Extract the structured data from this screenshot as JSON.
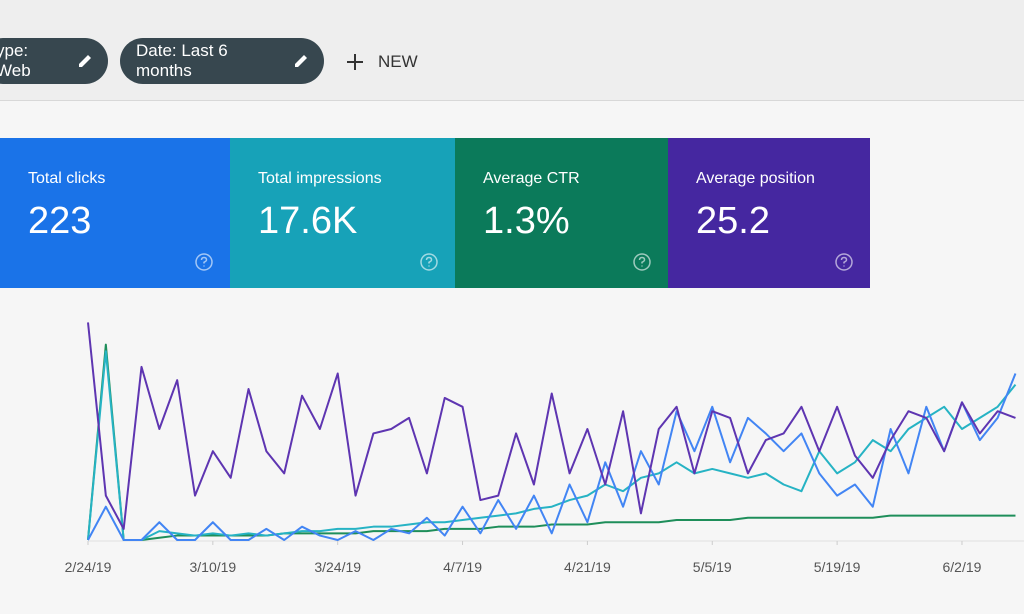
{
  "filters": [
    {
      "label": "ype: Web"
    },
    {
      "label": "Date: Last 6 months"
    }
  ],
  "new_button": "NEW",
  "metrics": [
    {
      "label": "Total clicks",
      "value": "223",
      "color": "#1a73e8"
    },
    {
      "label": "Total impressions",
      "value": "17.6K",
      "color": "#17a2b8"
    },
    {
      "label": "Average CTR",
      "value": "1.3%",
      "color": "#0b7a5a"
    },
    {
      "label": "Average position",
      "value": "25.2",
      "color": "#4527a0"
    }
  ],
  "chart_data": {
    "type": "line",
    "x": [
      0,
      2,
      4,
      6,
      8,
      10,
      12,
      14,
      16,
      18,
      20,
      22,
      24,
      26,
      28,
      30,
      32,
      34,
      36,
      38,
      40,
      42,
      44,
      46,
      48,
      50,
      52,
      54,
      56,
      58,
      60,
      62,
      64,
      66,
      68,
      70,
      72,
      74,
      76,
      78,
      80,
      82,
      84,
      86,
      88,
      90,
      92,
      94,
      96,
      98,
      100,
      102,
      104
    ],
    "xlim": [
      0,
      105
    ],
    "ylim": [
      0,
      100
    ],
    "xticks": [
      {
        "value": 0,
        "label": "2/24/19"
      },
      {
        "value": 14,
        "label": "3/10/19"
      },
      {
        "value": 28,
        "label": "3/24/19"
      },
      {
        "value": 42,
        "label": "4/7/19"
      },
      {
        "value": 56,
        "label": "4/21/19"
      },
      {
        "value": 70,
        "label": "5/5/19"
      },
      {
        "value": 84,
        "label": "5/19/19"
      },
      {
        "value": 98,
        "label": "6/2/19"
      }
    ],
    "series": [
      {
        "color": "#5e35b1",
        "values": [
          98,
          20,
          5,
          78,
          50,
          72,
          20,
          40,
          28,
          68,
          40,
          30,
          65,
          50,
          75,
          20,
          48,
          50,
          55,
          30,
          64,
          60,
          18,
          20,
          48,
          25,
          66,
          30,
          50,
          25,
          58,
          12,
          50,
          60,
          30,
          58,
          55,
          30,
          45,
          48,
          60,
          40,
          60,
          38,
          28,
          45,
          58,
          55,
          40,
          62,
          48,
          58,
          55
        ]
      },
      {
        "color": "#4285f4",
        "values": [
          0,
          15,
          0,
          0,
          8,
          0,
          0,
          8,
          0,
          0,
          5,
          0,
          6,
          2,
          0,
          4,
          0,
          5,
          3,
          10,
          2,
          15,
          3,
          18,
          5,
          20,
          3,
          25,
          8,
          35,
          15,
          40,
          25,
          58,
          40,
          60,
          35,
          55,
          48,
          40,
          48,
          30,
          20,
          25,
          15,
          50,
          30,
          60,
          40,
          62,
          45,
          55,
          75
        ]
      },
      {
        "color": "#26b3c4",
        "values": [
          0,
          85,
          0,
          0,
          4,
          3,
          2,
          3,
          2,
          3,
          2,
          3,
          4,
          4,
          5,
          5,
          6,
          6,
          7,
          8,
          8,
          9,
          10,
          11,
          12,
          14,
          15,
          18,
          20,
          25,
          22,
          28,
          30,
          35,
          30,
          32,
          30,
          28,
          30,
          25,
          22,
          40,
          30,
          35,
          45,
          40,
          50,
          55,
          60,
          50,
          55,
          60,
          70
        ]
      },
      {
        "color": "#1e8e5a",
        "values": [
          0,
          88,
          0,
          0,
          1,
          2,
          2,
          2,
          2,
          2,
          2,
          3,
          3,
          3,
          3,
          3,
          4,
          4,
          4,
          4,
          5,
          5,
          5,
          6,
          6,
          6,
          7,
          7,
          7,
          8,
          8,
          8,
          8,
          9,
          9,
          9,
          9,
          10,
          10,
          10,
          10,
          10,
          10,
          10,
          10,
          11,
          11,
          11,
          11,
          11,
          11,
          11,
          11
        ]
      }
    ]
  }
}
